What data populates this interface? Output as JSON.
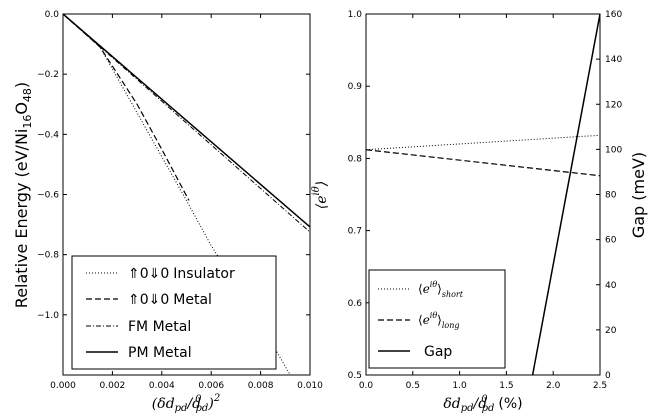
{
  "chart_data": [
    {
      "type": "line",
      "xlabel": "(δd_pd/d^0_pd)^2",
      "ylabel": "Relative Energy (eV/Ni16O48)",
      "xlim": [
        0,
        0.01
      ],
      "ylim": [
        -1.2,
        0
      ],
      "xticks": [
        "0.000",
        "0.002",
        "0.004",
        "0.006",
        "0.008",
        "0.010"
      ],
      "yticks": [
        "0.0",
        "−0.2",
        "−0.4",
        "−0.6",
        "−0.8",
        "−1.0"
      ],
      "legend_position": "lower-left",
      "series": [
        {
          "name": "⇑0⇓0 Insulator",
          "style": "dotted",
          "x": [
            0,
            0.0015,
            0.005,
            0.006,
            0.007,
            0.008,
            0.0092
          ],
          "y": [
            0,
            -0.11,
            -0.62,
            -0.77,
            -0.9,
            -1.03,
            -1.2
          ]
        },
        {
          "name": "⇑0⇓0 Metal",
          "style": "dashed",
          "x": [
            0,
            0.0015,
            0.003,
            0.004,
            0.0051
          ],
          "y": [
            0,
            -0.11,
            -0.3,
            -0.45,
            -0.62
          ]
        },
        {
          "name": "FM Metal",
          "style": "dashdot",
          "x": [
            0,
            0.01
          ],
          "y": [
            0,
            -0.725
          ]
        },
        {
          "name": "PM Metal",
          "style": "solid",
          "x": [
            0,
            0.01
          ],
          "y": [
            0,
            -0.708
          ]
        }
      ]
    },
    {
      "type": "line",
      "xlabel": "δd_pd/d^0_pd (%)",
      "ylabel_left": "⟨e^iθ⟩",
      "ylabel_right": "Gap (meV)",
      "xlim": [
        0,
        2.5
      ],
      "ylim_left": [
        0.5,
        1.0
      ],
      "ylim_right": [
        0,
        160
      ],
      "xticks": [
        "0.0",
        "0.5",
        "1.0",
        "1.5",
        "2.0",
        "2.5"
      ],
      "yticks_left": [
        "0.5",
        "0.6",
        "0.7",
        "0.8",
        "0.9",
        "1.0"
      ],
      "yticks_right": [
        "0",
        "20",
        "40",
        "60",
        "80",
        "100",
        "120",
        "140",
        "160"
      ],
      "legend_position": "lower-left",
      "series": [
        {
          "name": "⟨e^iθ⟩short",
          "style": "dotted",
          "axis": "left",
          "x": [
            0,
            2.5
          ],
          "y": [
            0.812,
            0.832
          ]
        },
        {
          "name": "⟨e^iθ⟩long",
          "style": "dashed",
          "axis": "left",
          "x": [
            0,
            2.5
          ],
          "y": [
            0.812,
            0.776
          ]
        },
        {
          "name": "Gap",
          "style": "solid",
          "axis": "right",
          "x": [
            1.78,
            2.5
          ],
          "y": [
            0,
            160
          ]
        }
      ]
    }
  ],
  "legend1": {
    "l1_prefix": "⇑0⇓0",
    "l1_suffix": "Insulator",
    "l2_prefix": "⇑0⇓0",
    "l2_suffix": "Metal",
    "l3": "FM Metal",
    "l4": "PM Metal"
  },
  "legend2": {
    "l1_base": "e",
    "l1_sup": "iθ",
    "l1_sub": "short",
    "l2_base": "e",
    "l2_sup": "iθ",
    "l2_sub": "long",
    "l3": "Gap"
  },
  "labels": {
    "left_ylabel_main": "Relative Energy (eV/Ni",
    "left_ylabel_sub1": "16",
    "left_ylabel_mid": "O",
    "left_ylabel_sub2": "48",
    "left_ylabel_end": ")",
    "right_yleft_base": "e",
    "right_yleft_sup": "iθ",
    "right_yright": "Gap (meV)",
    "left_xlabel": "(δd",
    "right_xlabel_end": "(%)"
  }
}
